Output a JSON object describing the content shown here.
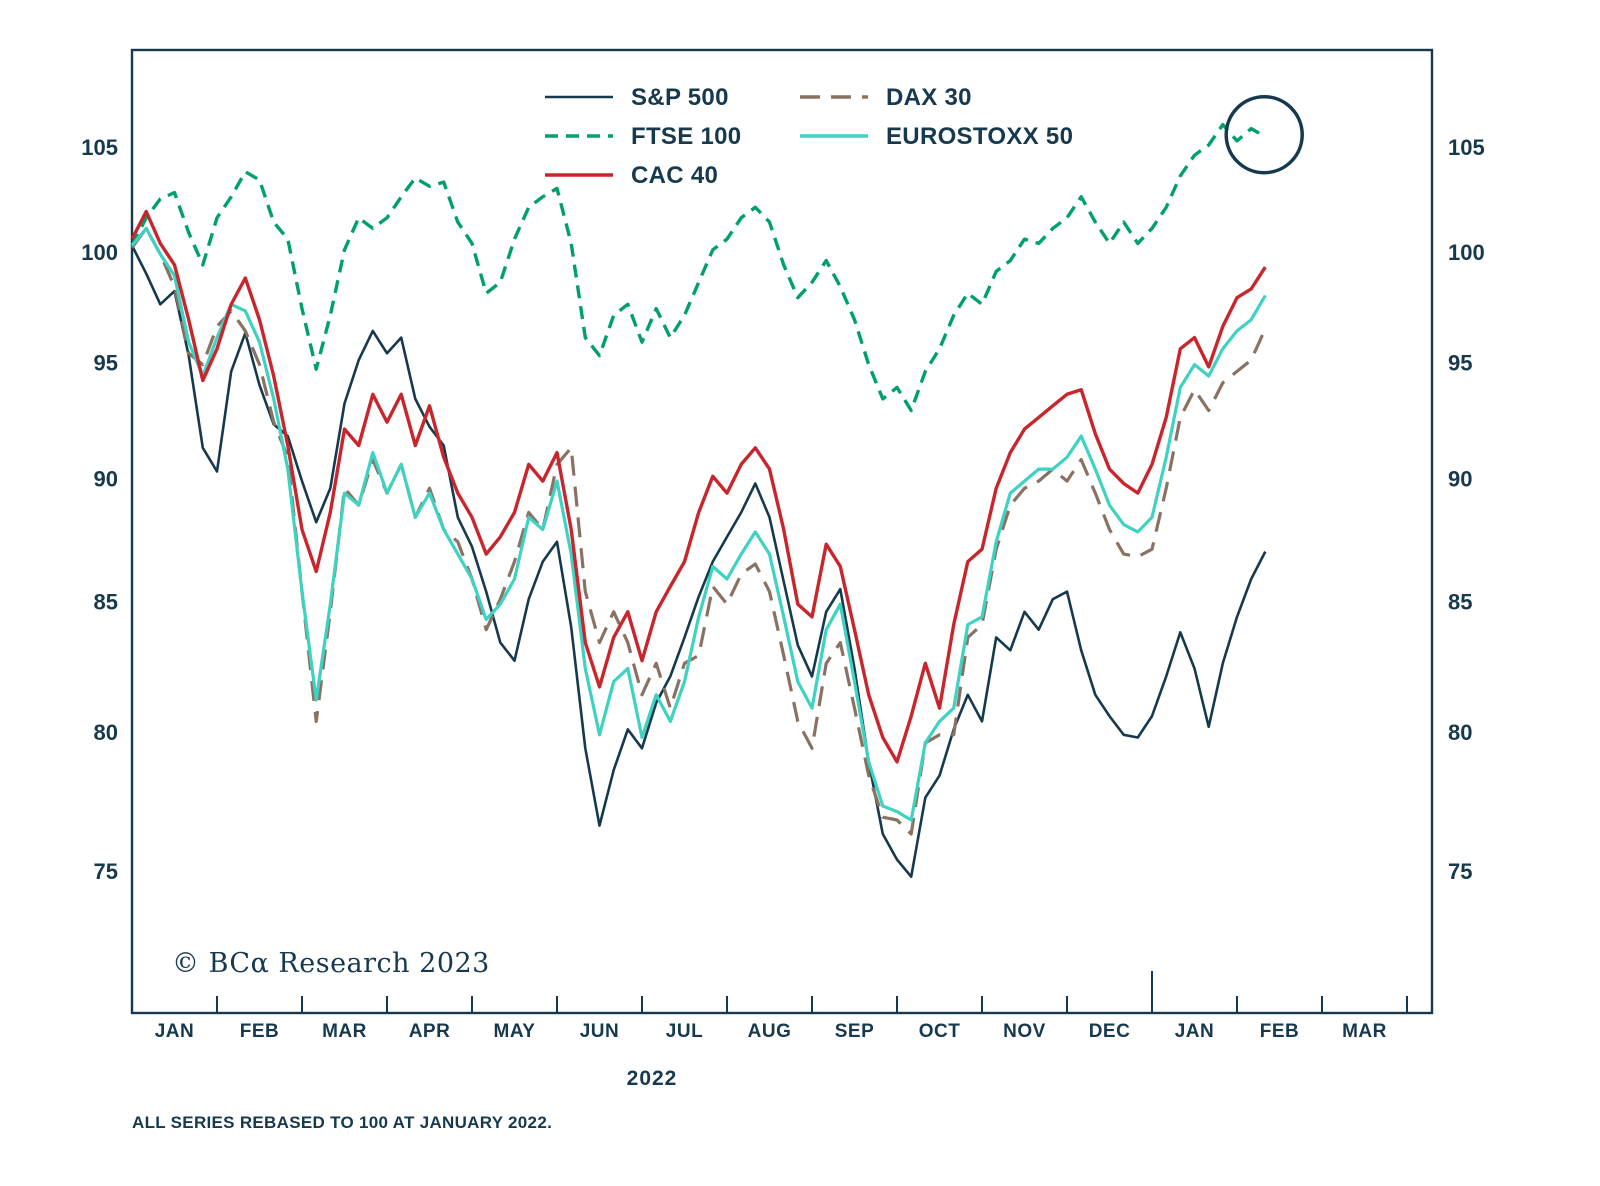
{
  "theme": {
    "background": "#ffffff",
    "text": "#16394e",
    "frame": "#16394e"
  },
  "chart_data": {
    "type": "line",
    "title": "",
    "xlabel": "2022",
    "ylabel": "",
    "y_scale": "log",
    "ylim": [
      70.2,
      109.9
    ],
    "y_ticks": [
      75,
      80,
      85,
      90,
      95,
      100,
      105
    ],
    "y_axis_sides": [
      "left",
      "right"
    ],
    "grid": false,
    "legend_position": "top-center-inside",
    "x_tick_labels": [
      "JAN",
      "FEB",
      "MAR",
      "APR",
      "MAY",
      "JUN",
      "JUL",
      "AUG",
      "SEP",
      "OCT",
      "NOV",
      "DEC",
      "JAN",
      "FEB",
      "MAR"
    ],
    "x_start_month_index": 0,
    "x_step_months": 0.1666667,
    "series": [
      {
        "name": "S&P 500",
        "color": "#16394e",
        "dash": "solid",
        "values": [
          100.3,
          99.0,
          97.6,
          98.2,
          95.3,
          91.3,
          90.3,
          94.6,
          96.3,
          94.0,
          92.3,
          91.8,
          89.9,
          88.2,
          89.6,
          93.2,
          95.1,
          96.4,
          95.4,
          96.1,
          93.4,
          92.2,
          91.4,
          88.4,
          87.2,
          85.4,
          83.4,
          82.7,
          85.1,
          86.6,
          87.4,
          84.0,
          79.4,
          76.6,
          78.6,
          80.1,
          79.4,
          81.1,
          82.1,
          83.6,
          85.2,
          86.6,
          87.6,
          88.6,
          89.8,
          88.4,
          85.8,
          83.3,
          82.1,
          84.6,
          85.5,
          82.4,
          78.9,
          76.3,
          75.4,
          74.8,
          77.6,
          78.4,
          80.1,
          81.4,
          80.4,
          83.6,
          83.1,
          84.6,
          83.9,
          85.1,
          85.4,
          83.1,
          81.4,
          80.6,
          79.9,
          79.8,
          80.6,
          82.1,
          83.8,
          82.4,
          80.2,
          82.6,
          84.4,
          85.9,
          87.0
        ]
      },
      {
        "name": "FTSE 100",
        "color": "#00a169",
        "dash": "dashed",
        "values": [
          100.3,
          101.6,
          102.5,
          102.8,
          100.9,
          99.4,
          101.6,
          102.6,
          103.8,
          103.4,
          101.4,
          100.6,
          97.4,
          94.7,
          97.1,
          100.1,
          101.6,
          101.1,
          101.6,
          102.6,
          103.5,
          103.1,
          103.3,
          101.4,
          100.4,
          98.1,
          98.6,
          100.6,
          102.1,
          102.6,
          103.0,
          100.4,
          96.1,
          95.3,
          97.1,
          97.6,
          95.9,
          97.4,
          96.1,
          97.1,
          98.6,
          100.1,
          100.6,
          101.6,
          102.1,
          101.4,
          99.4,
          97.9,
          98.6,
          99.6,
          98.4,
          96.9,
          94.9,
          93.4,
          93.9,
          92.9,
          94.6,
          95.6,
          97.1,
          98.1,
          97.6,
          99.1,
          99.6,
          100.6,
          100.4,
          101.1,
          101.6,
          102.6,
          101.4,
          100.4,
          101.4,
          100.4,
          101.1,
          102.1,
          103.6,
          104.6,
          105.1,
          106.1,
          105.3,
          105.9,
          105.5
        ]
      },
      {
        "name": "CAC 40",
        "color": "#c8262c",
        "dash": "solid",
        "values": [
          100.6,
          101.9,
          100.4,
          99.4,
          96.9,
          94.2,
          95.6,
          97.6,
          98.8,
          96.9,
          94.4,
          91.4,
          87.9,
          86.2,
          88.6,
          92.1,
          91.4,
          93.6,
          92.4,
          93.6,
          91.4,
          93.1,
          90.9,
          89.4,
          88.4,
          86.9,
          87.6,
          88.6,
          90.6,
          89.9,
          91.1,
          87.9,
          83.4,
          81.7,
          83.6,
          84.6,
          82.7,
          84.6,
          85.6,
          86.6,
          88.6,
          90.1,
          89.4,
          90.6,
          91.3,
          90.4,
          87.9,
          84.9,
          84.4,
          87.3,
          86.4,
          83.9,
          81.4,
          79.8,
          78.9,
          80.6,
          82.6,
          80.9,
          84.1,
          86.6,
          87.1,
          89.6,
          91.1,
          92.1,
          92.6,
          93.1,
          93.6,
          93.8,
          91.9,
          90.4,
          89.8,
          89.4,
          90.6,
          92.6,
          95.6,
          96.1,
          94.8,
          96.6,
          97.9,
          98.3,
          99.3
        ]
      },
      {
        "name": "DAX 30",
        "color": "#8a7263",
        "dash": "long-dash",
        "values": [
          100.2,
          101.1,
          99.9,
          98.4,
          95.4,
          94.9,
          96.6,
          97.3,
          96.4,
          94.9,
          92.4,
          90.9,
          85.4,
          80.4,
          84.6,
          89.6,
          88.9,
          90.8,
          89.4,
          90.6,
          88.4,
          89.6,
          87.9,
          87.4,
          85.9,
          83.9,
          85.1,
          86.6,
          88.6,
          87.9,
          90.6,
          91.3,
          85.4,
          83.4,
          84.6,
          83.4,
          81.4,
          82.6,
          80.9,
          82.6,
          82.9,
          85.6,
          84.9,
          86.1,
          86.5,
          85.4,
          82.9,
          80.4,
          79.4,
          82.6,
          83.4,
          80.9,
          78.4,
          76.9,
          76.8,
          76.3,
          79.6,
          79.9,
          79.9,
          83.6,
          84.1,
          87.1,
          88.9,
          89.6,
          89.9,
          90.4,
          89.9,
          90.8,
          89.4,
          87.9,
          86.9,
          86.8,
          87.1,
          89.6,
          92.6,
          93.8,
          92.9,
          94.1,
          94.6,
          95.1,
          96.5
        ]
      },
      {
        "name": "EUROSTOXX 50",
        "color": "#3ed2c2",
        "dash": "solid",
        "values": [
          100.3,
          101.1,
          99.9,
          98.9,
          95.9,
          94.4,
          96.1,
          97.6,
          97.3,
          95.9,
          93.4,
          90.4,
          85.4,
          81.2,
          84.9,
          89.4,
          88.9,
          91.1,
          89.4,
          90.6,
          88.4,
          89.4,
          87.9,
          86.9,
          85.9,
          84.3,
          84.9,
          85.9,
          88.4,
          87.9,
          89.9,
          86.9,
          82.4,
          79.9,
          81.9,
          82.4,
          79.8,
          81.4,
          80.4,
          81.9,
          84.4,
          86.4,
          85.9,
          86.9,
          87.8,
          86.9,
          84.4,
          81.9,
          80.9,
          83.9,
          84.9,
          81.9,
          78.9,
          77.3,
          77.1,
          76.8,
          79.6,
          80.4,
          80.9,
          84.1,
          84.4,
          87.4,
          89.4,
          89.9,
          90.4,
          90.4,
          90.9,
          91.8,
          90.4,
          88.9,
          88.1,
          87.8,
          88.4,
          90.9,
          93.9,
          94.9,
          94.4,
          95.6,
          96.4,
          96.9,
          98.0
        ]
      }
    ],
    "annotations": {
      "circle_highlight": {
        "x_month": 13.32,
        "y_value": 105.6,
        "radius_px": 38
      },
      "copyright": "© BCα Research 2023",
      "footnote": "ALL SERIES REBASED TO 100 AT JANUARY 2022."
    }
  }
}
